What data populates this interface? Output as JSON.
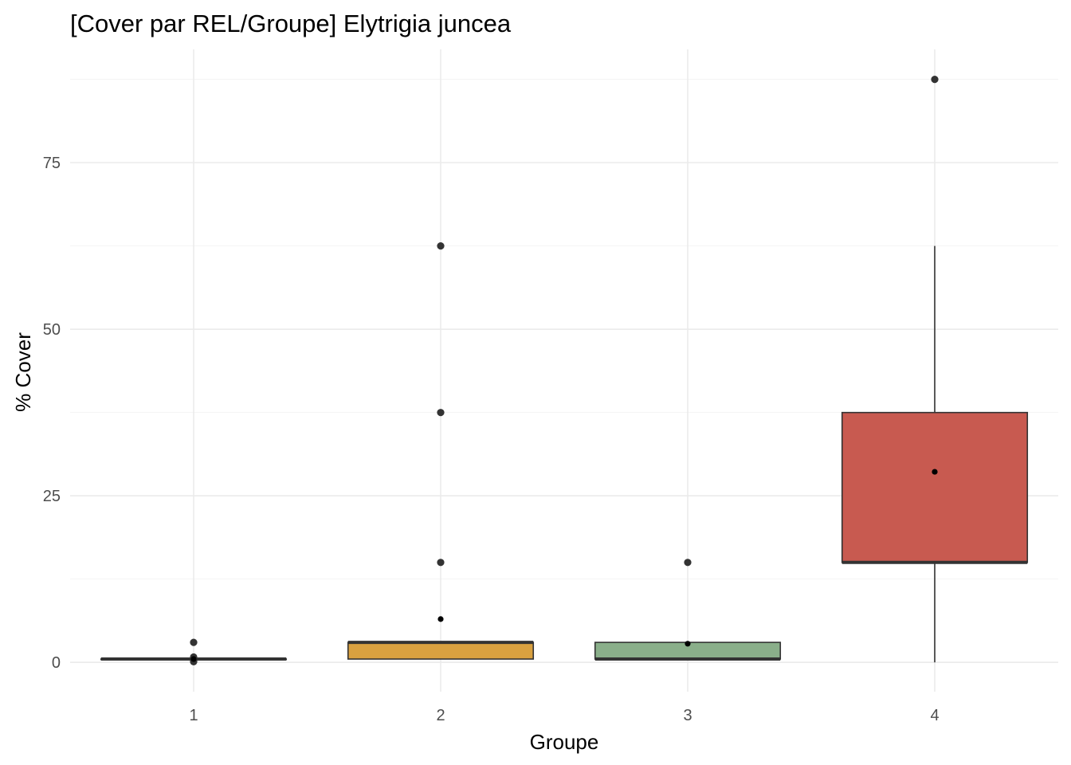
{
  "chart_data": {
    "type": "boxplot",
    "title": "[Cover par REL/Groupe] Elytrigia juncea",
    "xlabel": "Groupe",
    "ylabel": "% Cover",
    "categories": [
      "1",
      "2",
      "3",
      "4"
    ],
    "y_ticks": [
      0,
      25,
      50,
      75
    ],
    "y_tick_labels": [
      "0",
      "25",
      "50",
      "75"
    ],
    "ylim": [
      -4.4,
      92
    ],
    "grid": true,
    "legend": "none",
    "boxes": [
      {
        "group": "1",
        "fill": "#333333",
        "q1": 0.5,
        "median": 0.5,
        "q3": 0.5,
        "whisker_low": 0.5,
        "whisker_high": 0.5,
        "mean": 0.5,
        "outliers": [
          3,
          0.8,
          0.5,
          0.2,
          0.1
        ]
      },
      {
        "group": "2",
        "fill": "#D9A140",
        "q1": 0.5,
        "median": 3.0,
        "q3": 3.0,
        "whisker_low": 0.5,
        "whisker_high": 3.0,
        "mean": 6.5,
        "outliers": [
          62.5,
          37.5,
          15
        ]
      },
      {
        "group": "3",
        "fill": "#8AAF8A",
        "q1": 0.5,
        "median": 0.5,
        "q3": 3.0,
        "whisker_low": 0.5,
        "whisker_high": 3.0,
        "mean": 2.8,
        "outliers": [
          15
        ]
      },
      {
        "group": "4",
        "fill": "#C85A50",
        "q1": 15.0,
        "median": 15.0,
        "q3": 37.5,
        "whisker_low": 0.0,
        "whisker_high": 62.5,
        "mean": 28.6,
        "outliers": [
          87.5
        ]
      }
    ]
  }
}
